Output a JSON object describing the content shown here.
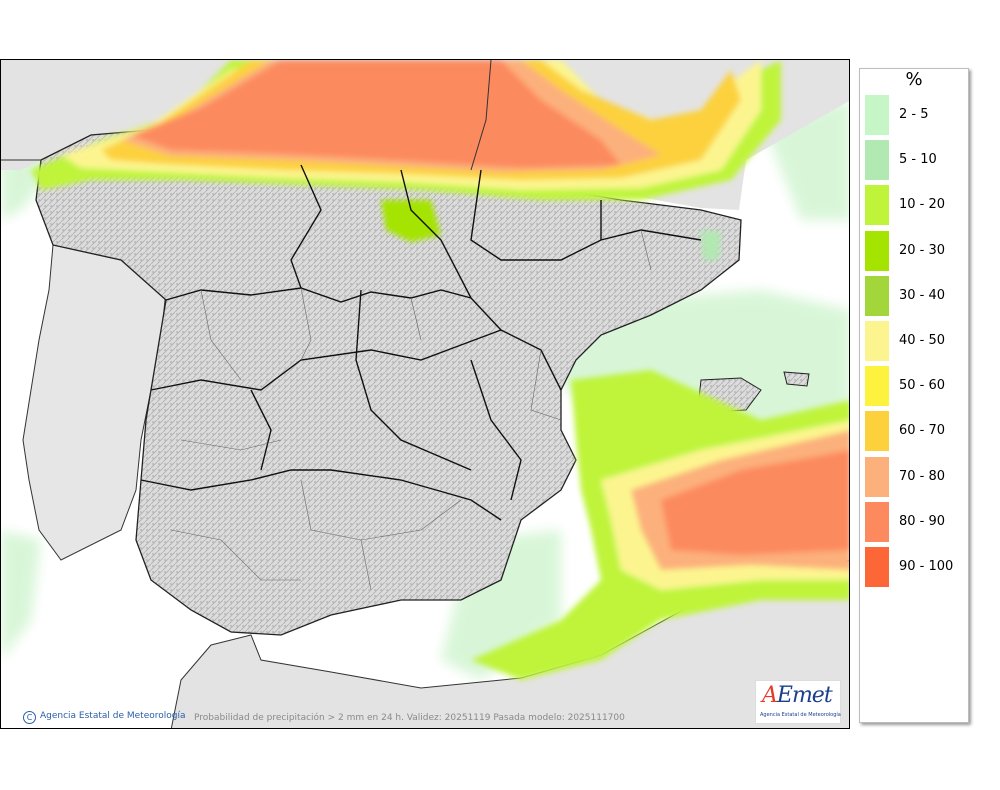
{
  "map": {
    "credit_text": "Agencia Estatal de Meteorología",
    "caption": "Probabilidad de precipitación > 2 mm en 24 h. Validez: 20251119 Pasada modelo: 2025111700",
    "logo": {
      "text_a": "A",
      "text_rest": "Emet",
      "subtitle": "Agencia Estatal de Meteorología"
    },
    "colors": {
      "land": "#e3e3e3",
      "sea": "#ffffff",
      "border": "#222222"
    }
  },
  "legend": {
    "title": "%",
    "items": [
      {
        "label": "2 - 5",
        "color": "#c6f5c6"
      },
      {
        "label": "5 - 10",
        "color": "#b2e8b2"
      },
      {
        "label": "10 - 20",
        "color": "#bff43a"
      },
      {
        "label": "20 - 30",
        "color": "#a4e400"
      },
      {
        "label": "30 - 40",
        "color": "#a2d63a"
      },
      {
        "label": "40 - 50",
        "color": "#fcf58f"
      },
      {
        "label": "50 - 60",
        "color": "#fdf23d"
      },
      {
        "label": "60 - 70",
        "color": "#fcd13c"
      },
      {
        "label": "70 - 80",
        "color": "#fcb07c"
      },
      {
        "label": "80 - 90",
        "color": "#fc8a5e"
      },
      {
        "label": "90 - 100",
        "color": "#fd6637"
      }
    ]
  }
}
